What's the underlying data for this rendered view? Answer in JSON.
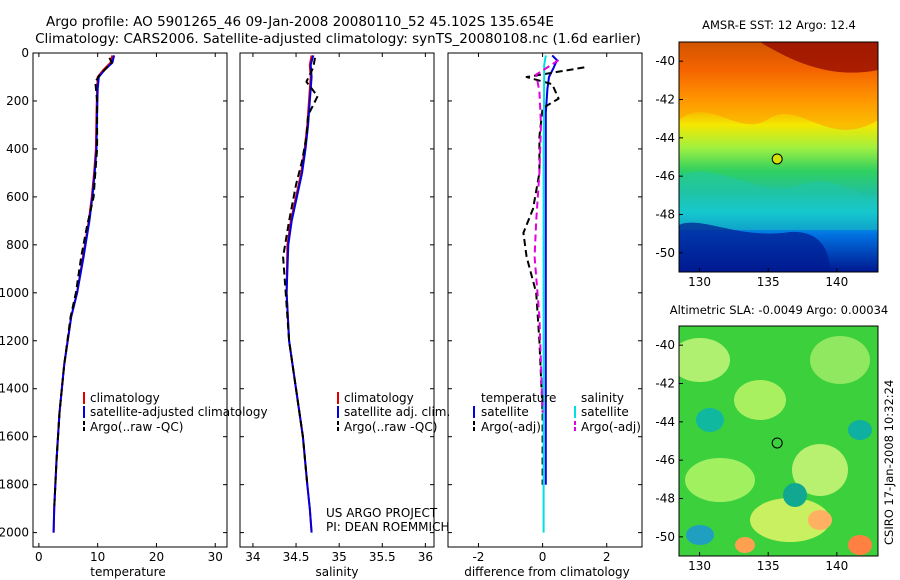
{
  "header": {
    "line1": "Argo profile: AO 5901265_46 09-Jan-2008 20080110_52 45.102S 135.654E",
    "line2": "Climatology: CARS2006. Satellite-adjusted climatology: synTS_20080108.nc (1.6d earlier)"
  },
  "footer": {
    "project": "US ARGO PROJECT",
    "pi": "PI: DEAN ROEMMICH",
    "stamp": "CSIRO 17-Jan-2008 10:32:24"
  },
  "colors": {
    "climatology": "#e00000",
    "satellite": "#0000e0",
    "argo": "#000000",
    "salinity_sat": "#00e0e0",
    "salinity_argo": "#e000e0",
    "marker": "#d4e000"
  },
  "chart_data": [
    {
      "type": "line",
      "xlabel": "temperature",
      "ylabel": "",
      "xlim": [
        -1,
        32
      ],
      "ylim": [
        0,
        2060
      ],
      "y_reversed": true,
      "xticks": [
        0,
        10,
        20,
        30
      ],
      "xtick_labels": [
        "0",
        "10",
        "20",
        "30"
      ],
      "yticks": [
        0,
        200,
        400,
        600,
        800,
        1000,
        1200,
        1400,
        1600,
        1800,
        2000
      ],
      "ytick_labels": [
        "0",
        "200",
        "400",
        "600",
        "800",
        "1000",
        "1200",
        "1400",
        "1600",
        "1800",
        "2000"
      ],
      "legend": [
        "climatology",
        "satellite-adjusted climatology",
        "Argo(..raw -QC)"
      ],
      "series": [
        {
          "name": "climatology",
          "color": "#e00000",
          "dash": false,
          "x": [
            12.5,
            12.2,
            11.0,
            10.0,
            9.9,
            9.8,
            9.7,
            9.4,
            9.0,
            8.5,
            7.5,
            6.5,
            5.5,
            4.3,
            3.5,
            3.0,
            2.6,
            2.5
          ],
          "y": [
            10,
            40,
            70,
            100,
            150,
            250,
            400,
            500,
            600,
            700,
            850,
            1000,
            1100,
            1300,
            1500,
            1700,
            1900,
            2000
          ]
        },
        {
          "name": "satellite-adjusted climatology",
          "color": "#0000e0",
          "dash": false,
          "x": [
            12.8,
            12.5,
            11.2,
            10.2,
            10.0,
            9.9,
            9.8,
            9.5,
            9.1,
            8.6,
            7.6,
            6.5,
            5.5,
            4.3,
            3.5,
            3.0,
            2.6,
            2.5
          ],
          "y": [
            10,
            40,
            70,
            100,
            150,
            250,
            400,
            500,
            600,
            700,
            850,
            1000,
            1100,
            1300,
            1500,
            1700,
            1900,
            2000
          ]
        },
        {
          "name": "Argo(..raw -QC)",
          "color": "#000000",
          "dash": true,
          "x": [
            12.0,
            12.4,
            11.6,
            10.4,
            9.6,
            9.9,
            9.9,
            9.6,
            9.3,
            8.2,
            7.2,
            6.3,
            5.4,
            4.3,
            3.5,
            3.0,
            2.6
          ],
          "y": [
            20,
            40,
            60,
            90,
            120,
            200,
            400,
            500,
            600,
            720,
            850,
            1000,
            1100,
            1300,
            1500,
            1700,
            1900
          ]
        }
      ]
    },
    {
      "type": "line",
      "xlabel": "salinity",
      "ylabel": "",
      "xlim": [
        33.85,
        36.1
      ],
      "ylim": [
        0,
        2060
      ],
      "y_reversed": true,
      "xticks": [
        34,
        34.5,
        35,
        35.5,
        36
      ],
      "xtick_labels": [
        "34",
        "34.5",
        "35",
        "35.5",
        "36"
      ],
      "legend": [
        "climatology",
        "satellite adj. clim.",
        "Argo(..raw -QC)"
      ],
      "series": [
        {
          "name": "climatology",
          "color": "#e00000",
          "dash": false,
          "x": [
            34.68,
            34.66,
            34.67,
            34.65,
            34.63,
            34.6,
            34.56,
            34.5,
            34.44,
            34.4,
            34.39,
            34.42,
            34.5,
            34.58,
            34.63,
            34.66,
            34.68
          ],
          "y": [
            10,
            50,
            100,
            200,
            300,
            400,
            500,
            600,
            700,
            800,
            1000,
            1200,
            1400,
            1600,
            1800,
            1900,
            2000
          ]
        },
        {
          "name": "satellite adj. clim.",
          "color": "#0000e0",
          "dash": false,
          "x": [
            34.7,
            34.67,
            34.68,
            34.66,
            34.64,
            34.61,
            34.57,
            34.51,
            34.45,
            34.41,
            34.39,
            34.42,
            34.5,
            34.58,
            34.63,
            34.66,
            34.68
          ],
          "y": [
            10,
            50,
            100,
            200,
            300,
            400,
            500,
            600,
            700,
            800,
            1000,
            1200,
            1400,
            1600,
            1800,
            1900,
            2000
          ]
        },
        {
          "name": "Argo(..raw -QC)",
          "color": "#000000",
          "dash": true,
          "x": [
            34.72,
            34.7,
            34.62,
            34.75,
            34.64,
            34.62,
            34.57,
            34.5,
            34.42,
            34.35,
            34.38,
            34.42,
            34.5,
            34.58,
            34.63
          ],
          "y": [
            20,
            60,
            120,
            180,
            260,
            350,
            450,
            550,
            700,
            850,
            1000,
            1200,
            1400,
            1600,
            1800
          ]
        }
      ]
    },
    {
      "type": "line",
      "xlabel": "difference from climatology",
      "ylabel": "",
      "xlim": [
        -2.95,
        3.1
      ],
      "ylim": [
        0,
        2060
      ],
      "y_reversed": true,
      "xticks": [
        -2,
        0,
        2
      ],
      "xtick_labels": [
        "-2",
        "0",
        "2"
      ],
      "legend": [
        "temperature",
        "satellite",
        "Argo(-adj)",
        "salinity",
        "satellite",
        "Argo(-adj)"
      ],
      "series": [
        {
          "name": "temperature satellite",
          "color": "#0000e0",
          "dash": false,
          "x": [
            0.3,
            0.45,
            0.35,
            0.2,
            0.15,
            0.1,
            0.1,
            0.1,
            0.1,
            0.1
          ],
          "y": [
            10,
            30,
            60,
            100,
            150,
            250,
            400,
            800,
            1200,
            1800
          ]
        },
        {
          "name": "temperature Argo(-adj)",
          "color": "#000000",
          "dash": true,
          "x": [
            1.3,
            0.4,
            -0.5,
            0.3,
            0.5,
            0.0,
            -0.1,
            -0.1,
            -0.3,
            -0.6,
            -0.5,
            -0.2,
            -0.1,
            0.0,
            0.0
          ],
          "y": [
            60,
            80,
            100,
            130,
            190,
            230,
            350,
            500,
            650,
            750,
            850,
            1000,
            1200,
            1500,
            1800
          ]
        },
        {
          "name": "salinity satellite",
          "color": "#00e0e0",
          "dash": false,
          "x": [
            0.1,
            0.05,
            0.05,
            0.03,
            0.03,
            0.03,
            0.03
          ],
          "y": [
            10,
            50,
            100,
            400,
            800,
            1500,
            2000
          ]
        },
        {
          "name": "salinity Argo(-adj)",
          "color": "#e000e0",
          "dash": true,
          "x": [
            0.5,
            -0.2,
            -0.1,
            -0.05,
            -0.1,
            -0.2,
            -0.25,
            -0.1,
            0.0
          ],
          "y": [
            30,
            90,
            160,
            300,
            500,
            700,
            850,
            1100,
            1500
          ]
        }
      ]
    },
    {
      "type": "heatmap",
      "title": "AMSR-E SST: 12 Argo: 12.4",
      "xlim": [
        128.5,
        143
      ],
      "ylim": [
        -51,
        -39
      ],
      "xticks": [
        130,
        135,
        140
      ],
      "yticks": [
        -40,
        -42,
        -44,
        -46,
        -48,
        -50
      ],
      "argo_position": {
        "lon": 135.654,
        "lat": -45.102
      }
    },
    {
      "type": "heatmap",
      "title": "Altimetric SLA: -0.0049 Argo: 0.00034",
      "xlim": [
        128.5,
        143
      ],
      "ylim": [
        -51,
        -39
      ],
      "xticks": [
        130,
        135,
        140
      ],
      "yticks": [
        -40,
        -42,
        -44,
        -46,
        -48,
        -50
      ],
      "argo_position": {
        "lon": 135.654,
        "lat": -45.102
      }
    }
  ]
}
